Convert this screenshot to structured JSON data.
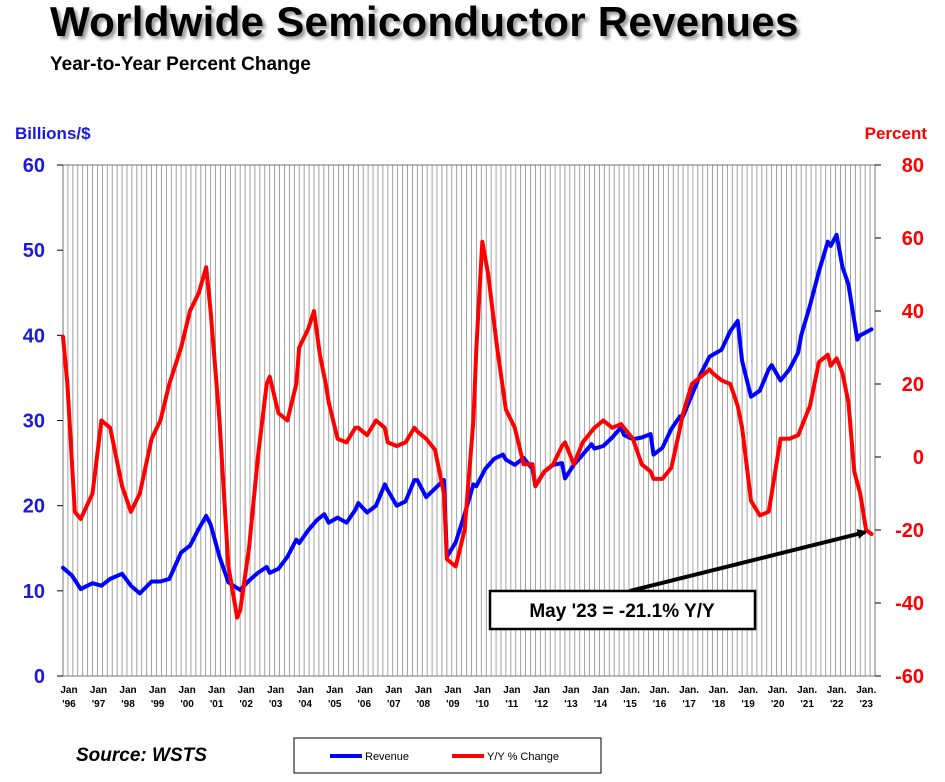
{
  "title": "Worldwide Semiconductor Revenues",
  "subtitle": "Year-to-Year Percent Change",
  "source": "Source: WSTS",
  "chart_data": {
    "type": "line",
    "left_axis": {
      "label": "Billions/$",
      "range": [
        0,
        60
      ],
      "ticks": [
        "0",
        "10",
        "20",
        "30",
        "40",
        "50",
        "60"
      ],
      "color": "#1a1adc"
    },
    "right_axis": {
      "label": "Percent",
      "range": [
        -60,
        80
      ],
      "ticks": [
        "-60",
        "-40",
        "-20",
        "0",
        "20",
        "40",
        "60",
        "80"
      ],
      "color": "#ff0000"
    },
    "x_axis": {
      "range": [
        1996,
        2023.5
      ],
      "tick_labels": [
        [
          "Jan",
          "'96"
        ],
        [
          "Jan",
          "'97"
        ],
        [
          "Jan",
          "'98"
        ],
        [
          "Jan",
          "'99"
        ],
        [
          "Jan",
          "'00"
        ],
        [
          "Jan",
          "'01"
        ],
        [
          "Jan",
          "'02"
        ],
        [
          "Jan",
          "'03"
        ],
        [
          "Jan",
          "'04"
        ],
        [
          "Jan",
          "'05"
        ],
        [
          "Jan",
          "'06"
        ],
        [
          "Jan",
          "'07"
        ],
        [
          "Jan",
          "'08"
        ],
        [
          "Jan",
          "'09"
        ],
        [
          "Jan",
          "'10"
        ],
        [
          "Jan",
          "'11"
        ],
        [
          "Jan",
          "'12"
        ],
        [
          "Jan",
          "'13"
        ],
        [
          "Jan",
          "'14"
        ],
        [
          "Jan.",
          "'15"
        ],
        [
          "Jan.",
          "'16"
        ],
        [
          "Jan.",
          "'17"
        ],
        [
          "Jan.",
          "'18"
        ],
        [
          "Jan.",
          "'19"
        ],
        [
          "Jan.",
          "'20"
        ],
        [
          "Jan.",
          "'21"
        ],
        [
          "Jan.",
          "'22"
        ],
        [
          "Jan.",
          "'23"
        ]
      ]
    },
    "grid": "vertical",
    "legend_position": "bottom-center",
    "series": [
      {
        "name": "Revenue",
        "axis": "left",
        "color": "#0000ff",
        "points": [
          [
            1996,
            12.7
          ],
          [
            1996.3,
            11.8
          ],
          [
            1996.6,
            10.2
          ],
          [
            1997,
            10.9
          ],
          [
            1997.3,
            10.6
          ],
          [
            1997.6,
            11.4
          ],
          [
            1998,
            12
          ],
          [
            1998.3,
            10.6
          ],
          [
            1998.6,
            9.7
          ],
          [
            1999,
            11.1
          ],
          [
            1999.3,
            11.1
          ],
          [
            1999.6,
            11.4
          ],
          [
            2000,
            14.5
          ],
          [
            2000.3,
            15.3
          ],
          [
            2000.6,
            17.3
          ],
          [
            2000.85,
            18.8
          ],
          [
            2001,
            17.8
          ],
          [
            2001.3,
            14
          ],
          [
            2001.6,
            11
          ],
          [
            2002,
            10.1
          ],
          [
            2002.3,
            11.2
          ],
          [
            2002.6,
            12.1
          ],
          [
            2002.9,
            12.8
          ],
          [
            2003,
            12.1
          ],
          [
            2003.3,
            12.6
          ],
          [
            2003.6,
            14
          ],
          [
            2003.9,
            16
          ],
          [
            2004,
            15.6
          ],
          [
            2004.3,
            17.1
          ],
          [
            2004.6,
            18.3
          ],
          [
            2004.85,
            19
          ],
          [
            2005,
            18
          ],
          [
            2005.3,
            18.6
          ],
          [
            2005.6,
            18
          ],
          [
            2005.9,
            19.5
          ],
          [
            2006,
            20.3
          ],
          [
            2006.3,
            19.2
          ],
          [
            2006.6,
            20
          ],
          [
            2006.9,
            22.5
          ],
          [
            2007,
            21.8
          ],
          [
            2007.3,
            20
          ],
          [
            2007.6,
            20.5
          ],
          [
            2007.9,
            23
          ],
          [
            2008,
            23
          ],
          [
            2008.3,
            21
          ],
          [
            2008.6,
            22
          ],
          [
            2008.9,
            23
          ],
          [
            2009,
            14
          ],
          [
            2009.3,
            15.7
          ],
          [
            2009.6,
            19
          ],
          [
            2009.9,
            22.5
          ],
          [
            2010,
            22.3
          ],
          [
            2010.3,
            24.3
          ],
          [
            2010.6,
            25.5
          ],
          [
            2010.9,
            26
          ],
          [
            2011,
            25.4
          ],
          [
            2011.3,
            24.8
          ],
          [
            2011.6,
            25.6
          ],
          [
            2011.9,
            24.3
          ],
          [
            2012,
            22.3
          ],
          [
            2012.3,
            24
          ],
          [
            2012.6,
            24.8
          ],
          [
            2012.9,
            25
          ],
          [
            2013,
            23.2
          ],
          [
            2013.3,
            24.8
          ],
          [
            2013.6,
            26
          ],
          [
            2013.9,
            27.2
          ],
          [
            2014,
            26.7
          ],
          [
            2014.3,
            27
          ],
          [
            2014.6,
            28
          ],
          [
            2014.9,
            29.2
          ],
          [
            2015,
            28.3
          ],
          [
            2015.3,
            27.8
          ],
          [
            2015.6,
            28
          ],
          [
            2015.9,
            28.4
          ],
          [
            2016,
            26
          ],
          [
            2016.3,
            26.8
          ],
          [
            2016.6,
            29
          ],
          [
            2016.9,
            30.5
          ],
          [
            2017,
            30.5
          ],
          [
            2017.3,
            33
          ],
          [
            2017.6,
            35.5
          ],
          [
            2017.9,
            37.5
          ],
          [
            2018,
            37.7
          ],
          [
            2018.3,
            38.3
          ],
          [
            2018.6,
            40.5
          ],
          [
            2018.85,
            41.7
          ],
          [
            2019,
            37
          ],
          [
            2019.3,
            32.8
          ],
          [
            2019.6,
            33.5
          ],
          [
            2019.9,
            36
          ],
          [
            2020,
            36.5
          ],
          [
            2020.3,
            34.7
          ],
          [
            2020.6,
            36
          ],
          [
            2020.9,
            38
          ],
          [
            2021,
            40
          ],
          [
            2021.3,
            43.5
          ],
          [
            2021.6,
            47.5
          ],
          [
            2021.9,
            51
          ],
          [
            2022,
            50.5
          ],
          [
            2022.2,
            51.8
          ],
          [
            2022.4,
            48
          ],
          [
            2022.6,
            46
          ],
          [
            2022.9,
            39.5
          ],
          [
            2023,
            40
          ],
          [
            2023.38,
            40.7
          ]
        ]
      },
      {
        "name": "Y/Y % Change",
        "axis": "right",
        "color": "#ff0000",
        "points": [
          [
            1996,
            33
          ],
          [
            1996.15,
            20
          ],
          [
            1996.4,
            -15
          ],
          [
            1996.6,
            -17
          ],
          [
            1997,
            -10
          ],
          [
            1997.3,
            10
          ],
          [
            1997.6,
            8
          ],
          [
            1998,
            -8
          ],
          [
            1998.3,
            -15
          ],
          [
            1998.6,
            -10
          ],
          [
            1999,
            5
          ],
          [
            1999.3,
            10
          ],
          [
            1999.6,
            20
          ],
          [
            2000,
            30
          ],
          [
            2000.3,
            40
          ],
          [
            2000.6,
            45
          ],
          [
            2000.85,
            52
          ],
          [
            2001,
            40
          ],
          [
            2001.3,
            10
          ],
          [
            2001.6,
            -30
          ],
          [
            2001.9,
            -44
          ],
          [
            2002,
            -42
          ],
          [
            2002.3,
            -25
          ],
          [
            2002.6,
            0
          ],
          [
            2002.9,
            20
          ],
          [
            2003,
            22
          ],
          [
            2003.3,
            12
          ],
          [
            2003.6,
            10
          ],
          [
            2003.9,
            20
          ],
          [
            2004,
            30
          ],
          [
            2004.3,
            35
          ],
          [
            2004.5,
            40
          ],
          [
            2004.7,
            28
          ],
          [
            2004.9,
            20
          ],
          [
            2005,
            15
          ],
          [
            2005.3,
            5
          ],
          [
            2005.6,
            4
          ],
          [
            2005.9,
            8
          ],
          [
            2006,
            8
          ],
          [
            2006.3,
            6
          ],
          [
            2006.6,
            10
          ],
          [
            2006.9,
            8
          ],
          [
            2007,
            4
          ],
          [
            2007.3,
            3
          ],
          [
            2007.6,
            4
          ],
          [
            2007.9,
            8
          ],
          [
            2008,
            7
          ],
          [
            2008.3,
            5
          ],
          [
            2008.6,
            2
          ],
          [
            2008.9,
            -10
          ],
          [
            2009,
            -28
          ],
          [
            2009.3,
            -30
          ],
          [
            2009.6,
            -20
          ],
          [
            2009.9,
            10
          ],
          [
            2010,
            30
          ],
          [
            2010.2,
            59
          ],
          [
            2010.4,
            50
          ],
          [
            2010.7,
            30
          ],
          [
            2011,
            13
          ],
          [
            2011.3,
            8
          ],
          [
            2011.6,
            -2
          ],
          [
            2011.9,
            -2
          ],
          [
            2012,
            -8
          ],
          [
            2012.3,
            -4
          ],
          [
            2012.6,
            -2
          ],
          [
            2012.9,
            3
          ],
          [
            2013,
            4
          ],
          [
            2013.3,
            -2
          ],
          [
            2013.6,
            4
          ],
          [
            2013.9,
            7
          ],
          [
            2014,
            8
          ],
          [
            2014.3,
            10
          ],
          [
            2014.6,
            8
          ],
          [
            2014.9,
            9
          ],
          [
            2015,
            8
          ],
          [
            2015.3,
            5
          ],
          [
            2015.6,
            -2
          ],
          [
            2015.9,
            -4
          ],
          [
            2016,
            -6
          ],
          [
            2016.3,
            -6
          ],
          [
            2016.6,
            -3
          ],
          [
            2016.9,
            8
          ],
          [
            2017,
            12
          ],
          [
            2017.3,
            20
          ],
          [
            2017.6,
            22
          ],
          [
            2017.9,
            24
          ],
          [
            2018,
            23
          ],
          [
            2018.3,
            21
          ],
          [
            2018.6,
            20
          ],
          [
            2018.85,
            14
          ],
          [
            2019,
            8
          ],
          [
            2019.3,
            -12
          ],
          [
            2019.6,
            -16
          ],
          [
            2019.9,
            -15
          ],
          [
            2020,
            -10
          ],
          [
            2020.3,
            5
          ],
          [
            2020.6,
            5
          ],
          [
            2020.9,
            6
          ],
          [
            2021,
            8
          ],
          [
            2021.3,
            14
          ],
          [
            2021.6,
            26
          ],
          [
            2021.9,
            28
          ],
          [
            2022,
            25
          ],
          [
            2022.2,
            27
          ],
          [
            2022.4,
            23
          ],
          [
            2022.6,
            15
          ],
          [
            2022.8,
            -4
          ],
          [
            2023,
            -10
          ],
          [
            2023.2,
            -20
          ],
          [
            2023.38,
            -21.1
          ]
        ]
      }
    ],
    "annotation": {
      "text": "May '23 = -21.1% Y/Y",
      "target": [
        2023.38,
        -21.1
      ],
      "target_axis": "right"
    }
  }
}
